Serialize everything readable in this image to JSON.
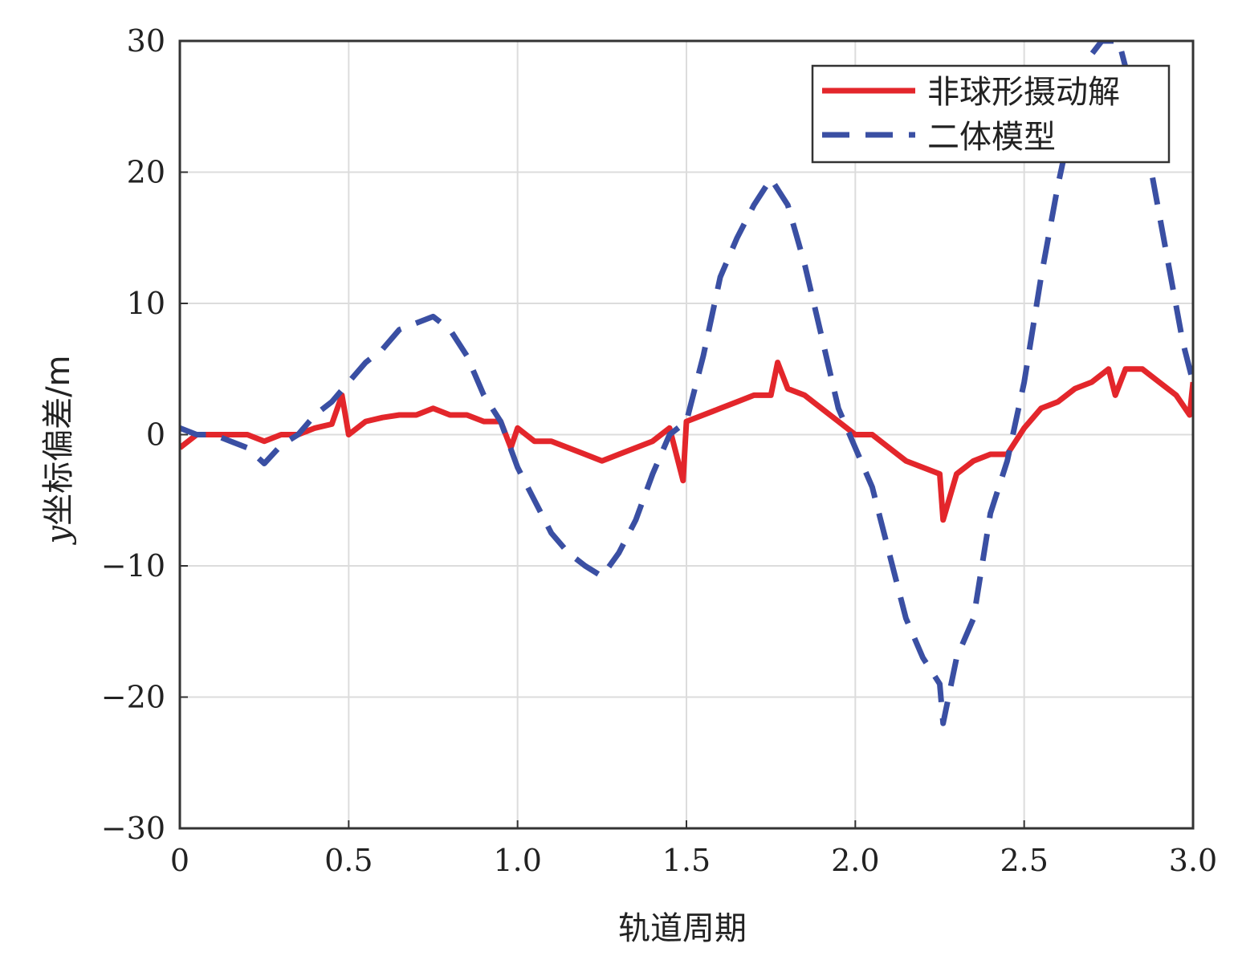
{
  "chart_data": {
    "type": "line",
    "title": "",
    "xlabel": "轨道周期",
    "ylabel_var": "y",
    "ylabel": "坐标偏差/m",
    "xlim": [
      0,
      3.0
    ],
    "ylim": [
      -30,
      30
    ],
    "xticks": [
      0,
      0.5,
      1.0,
      1.5,
      2.0,
      2.5,
      3.0
    ],
    "xtick_labels": [
      "0",
      "0.5",
      "1.0",
      "1.5",
      "2.0",
      "2.5",
      "3.0"
    ],
    "yticks": [
      -30,
      -20,
      -10,
      0,
      10,
      20,
      30
    ],
    "ytick_labels": [
      "−30",
      "−20",
      "−10",
      "0",
      "10",
      "20",
      "30"
    ],
    "grid": true,
    "legend_position": "top-right",
    "series": [
      {
        "name": "非球形摄动解",
        "color": "#e3262b",
        "style": "solid",
        "x": [
          0,
          0.05,
          0.1,
          0.15,
          0.2,
          0.25,
          0.3,
          0.35,
          0.4,
          0.45,
          0.48,
          0.5,
          0.55,
          0.6,
          0.65,
          0.7,
          0.75,
          0.8,
          0.85,
          0.9,
          0.95,
          0.98,
          1.0,
          1.05,
          1.1,
          1.15,
          1.2,
          1.25,
          1.3,
          1.35,
          1.4,
          1.45,
          1.49,
          1.5,
          1.55,
          1.6,
          1.65,
          1.7,
          1.75,
          1.77,
          1.8,
          1.85,
          1.9,
          1.95,
          2.0,
          2.05,
          2.1,
          2.15,
          2.2,
          2.25,
          2.26,
          2.3,
          2.35,
          2.4,
          2.45,
          2.5,
          2.55,
          2.6,
          2.65,
          2.7,
          2.75,
          2.77,
          2.8,
          2.85,
          2.9,
          2.95,
          2.99,
          3.0
        ],
        "y": [
          -1,
          0,
          0,
          0,
          0,
          -0.5,
          0,
          0,
          0.5,
          0.8,
          3,
          0,
          1,
          1.3,
          1.5,
          1.5,
          2,
          1.5,
          1.5,
          1,
          1,
          -1,
          0.5,
          -0.5,
          -0.5,
          -1,
          -1.5,
          -2,
          -1.5,
          -1,
          -0.5,
          0.5,
          -3.5,
          1,
          1.5,
          2,
          2.5,
          3,
          3,
          5.5,
          3.5,
          3,
          2,
          1,
          0,
          0,
          -1,
          -2,
          -2.5,
          -3,
          -6.5,
          -3,
          -2,
          -1.5,
          -1.5,
          0.5,
          2,
          2.5,
          3.5,
          4,
          5,
          3,
          5,
          5,
          4,
          3,
          1.5,
          4
        ]
      },
      {
        "name": "二体模型",
        "color": "#3a4fa3",
        "style": "dashed",
        "x": [
          0,
          0.05,
          0.1,
          0.15,
          0.2,
          0.25,
          0.3,
          0.35,
          0.4,
          0.45,
          0.5,
          0.55,
          0.6,
          0.65,
          0.7,
          0.75,
          0.8,
          0.85,
          0.9,
          0.95,
          1.0,
          1.05,
          1.1,
          1.15,
          1.2,
          1.25,
          1.3,
          1.35,
          1.4,
          1.45,
          1.5,
          1.55,
          1.6,
          1.65,
          1.7,
          1.75,
          1.8,
          1.85,
          1.9,
          1.95,
          2.0,
          2.05,
          2.1,
          2.15,
          2.2,
          2.25,
          2.26,
          2.3,
          2.35,
          2.4,
          2.45,
          2.5,
          2.55,
          2.6,
          2.65,
          2.7,
          2.73,
          2.78,
          2.82,
          2.87,
          2.92,
          2.97,
          3.0
        ],
        "y": [
          0.5,
          0,
          0,
          -0.5,
          -1,
          -2.2,
          -0.8,
          0,
          1.5,
          2.5,
          4,
          5.5,
          6.5,
          8,
          8.5,
          9,
          8,
          6,
          3,
          1,
          -2.5,
          -5,
          -7.5,
          -9,
          -10,
          -10.8,
          -9,
          -6.5,
          -3,
          0,
          1,
          6,
          12,
          15,
          17.5,
          19.5,
          17.5,
          13,
          7.5,
          2,
          -1,
          -4,
          -9,
          -14,
          -17,
          -19,
          -22,
          -17,
          -14,
          -6,
          -2,
          4,
          12,
          19,
          25,
          29,
          30,
          30,
          26,
          21,
          14,
          7,
          4
        ]
      }
    ]
  }
}
